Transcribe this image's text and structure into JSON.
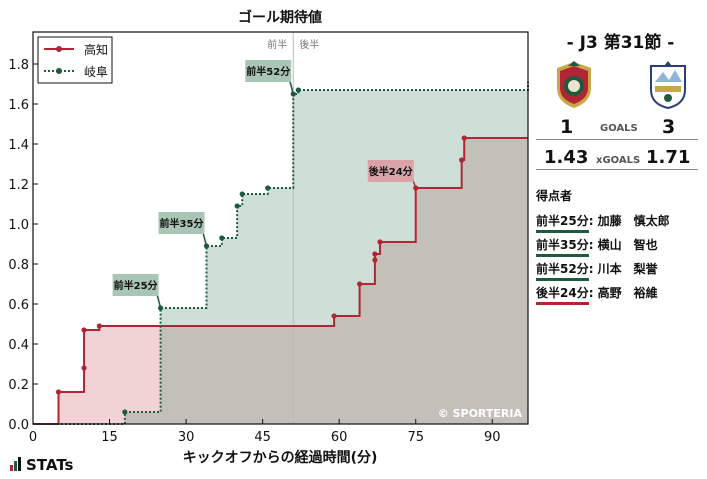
{
  "chart_data": {
    "type": "line",
    "subtype": "step",
    "title": "ゴール期待値",
    "xlabel": "キックオフからの経過時間(分)",
    "ylabel": "",
    "xlim": [
      0,
      97
    ],
    "ylim": [
      0,
      1.96
    ],
    "xticks": [
      0,
      15,
      30,
      45,
      60,
      75,
      90
    ],
    "yticks": [
      0.0,
      0.2,
      0.4,
      0.6,
      0.8,
      1.0,
      1.2,
      1.4,
      1.6,
      1.8
    ],
    "half_line": {
      "x": 51,
      "left_label": "前半",
      "right_label": "後半"
    },
    "legend_position": "top-left",
    "watermark": "© SPORTERIA",
    "series": [
      {
        "name": "高知",
        "color": "#b22534",
        "fill": "rgba(200,80,90,0.25)",
        "line_style": "solid",
        "x": [
          5,
          10,
          10,
          13,
          59,
          64,
          67,
          67,
          68,
          75,
          84,
          84.5
        ],
        "y": [
          0.16,
          0.28,
          0.47,
          0.49,
          0.54,
          0.7,
          0.82,
          0.85,
          0.91,
          1.18,
          1.32,
          1.43
        ],
        "end_x": 97
      },
      {
        "name": "岐阜",
        "color": "#1d5a3e",
        "fill": "rgba(90,150,120,0.30)",
        "line_style": "dotted",
        "x": [
          18,
          25,
          34,
          37,
          40,
          41,
          46,
          51,
          52,
          98
        ],
        "y": [
          0.06,
          0.58,
          0.89,
          0.93,
          1.09,
          1.15,
          1.18,
          1.65,
          1.67,
          1.71
        ],
        "end_x": 97
      }
    ],
    "goal_annotations": [
      {
        "label": "前半25分",
        "team": "岐阜",
        "x": 25,
        "y": 0.58
      },
      {
        "label": "前半35分",
        "team": "岐阜",
        "x": 34,
        "y": 0.89
      },
      {
        "label": "前半52分",
        "team": "岐阜",
        "x": 51,
        "y": 1.65
      },
      {
        "label": "後半24分",
        "team": "高知",
        "x": 75,
        "y": 1.18
      }
    ]
  },
  "match": {
    "title": "- J3 第31節 -",
    "home_goals": "1",
    "away_goals": "3",
    "goals_label": "GOALS",
    "home_xg": "1.43",
    "away_xg": "1.71",
    "xg_label": "xGOALS",
    "home_color": "#b22534",
    "away_color": "#1d5a3e"
  },
  "scorers": {
    "title": "得点者",
    "items": [
      {
        "time": "前半25分",
        "name": ": 加藤　慎太郎",
        "team_color": "#1d5a3e"
      },
      {
        "time": "前半35分",
        "name": ": 横山　智也",
        "team_color": "#1d5a3e"
      },
      {
        "time": "前半52分",
        "name": ": 川本　梨誉",
        "team_color": "#1d5a3e"
      },
      {
        "time": "後半24分",
        "name": ": 高野　裕維",
        "team_color": "#b22534"
      }
    ]
  },
  "footer": {
    "logo_text": "STATs"
  }
}
